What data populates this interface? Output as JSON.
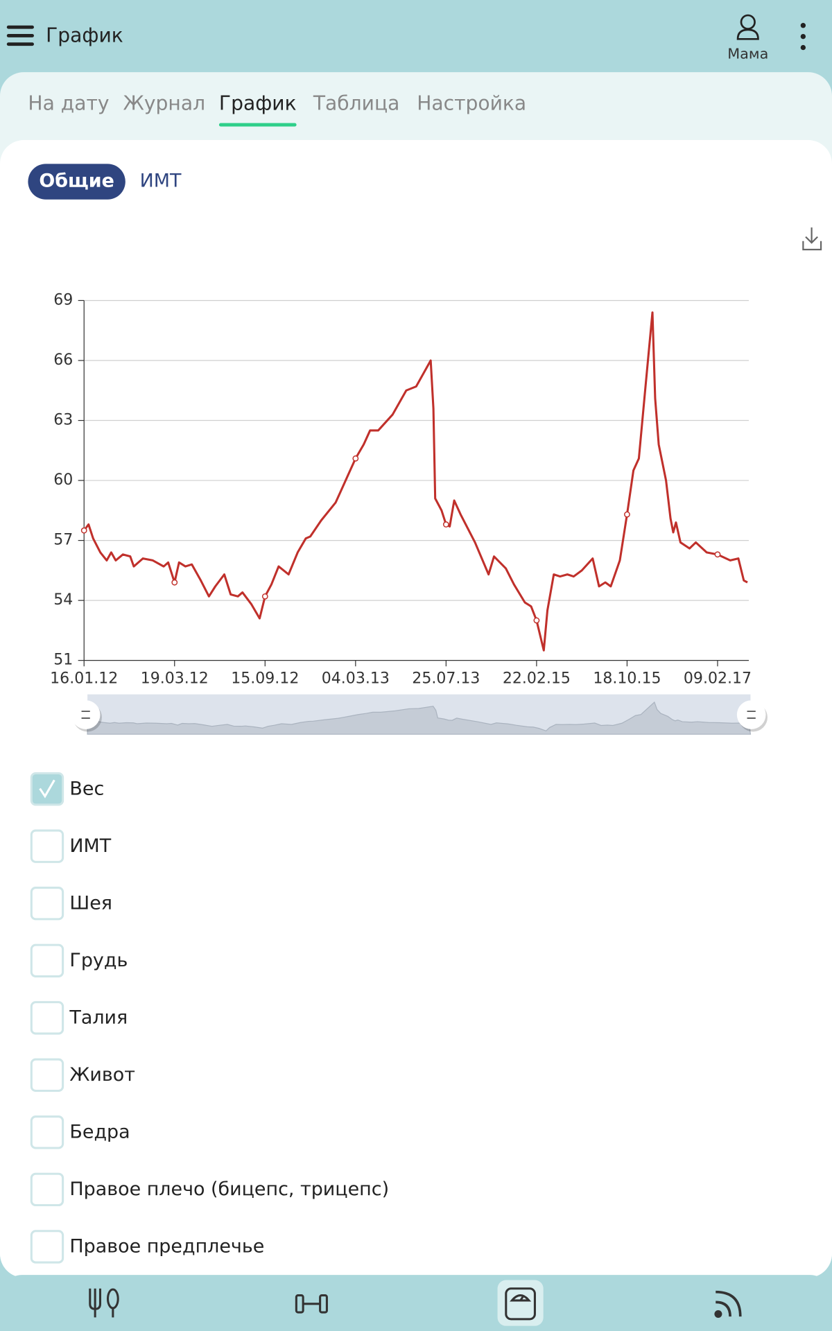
{
  "app_bar": {
    "title": "График",
    "profile": "Мама"
  },
  "tabs": [
    {
      "label": "На дату",
      "active": false
    },
    {
      "label": "Журнал",
      "active": false
    },
    {
      "label": "График",
      "active": true
    },
    {
      "label": "Таблица",
      "active": false
    },
    {
      "label": "Настройка",
      "active": false
    }
  ],
  "subtabs": [
    {
      "label": "Общие",
      "active": true
    },
    {
      "label": "ИМТ",
      "active": false
    }
  ],
  "chart_data": {
    "type": "line",
    "color": "#c0302b",
    "grid": true,
    "x": [
      0,
      0.05,
      0.1,
      0.18,
      0.25,
      0.3,
      0.35,
      0.43,
      0.51,
      0.55,
      0.65,
      0.76,
      0.88,
      0.93,
      1.0,
      1.05,
      1.12,
      1.19,
      1.29,
      1.38,
      1.45,
      1.55,
      1.62,
      1.7,
      1.75,
      1.85,
      1.94,
      2.0,
      2.07,
      2.15,
      2.26,
      2.36,
      2.45,
      2.5,
      2.62,
      2.78,
      2.84,
      2.92,
      3.0,
      3.09,
      3.16,
      3.25,
      3.41,
      3.56,
      3.67,
      3.83,
      3.86,
      3.88,
      3.95,
      4.0,
      4.04,
      4.09,
      4.16,
      4.32,
      4.47,
      4.53,
      4.66,
      4.75,
      4.87,
      4.94,
      5.0,
      5.08,
      5.12,
      5.19,
      5.26,
      5.34,
      5.41,
      5.5,
      5.62,
      5.69,
      5.76,
      5.82,
      5.92,
      6.0,
      6.07,
      6.13,
      6.2,
      6.28,
      6.31,
      6.35,
      6.43,
      6.48,
      6.51,
      6.54,
      6.59,
      6.69,
      6.76,
      6.88,
      7.0,
      7.14,
      7.23,
      7.29,
      7.33
    ],
    "values": [
      57.5,
      57.8,
      57.1,
      56.4,
      56.0,
      56.4,
      56.0,
      56.3,
      56.2,
      55.7,
      56.1,
      56.0,
      55.7,
      55.9,
      54.9,
      55.9,
      55.7,
      55.8,
      55.0,
      54.2,
      54.7,
      55.3,
      54.3,
      54.2,
      54.4,
      53.8,
      53.1,
      54.2,
      54.8,
      55.7,
      55.3,
      56.4,
      57.1,
      57.2,
      58.0,
      58.9,
      59.5,
      60.3,
      61.1,
      61.8,
      62.5,
      62.5,
      63.3,
      64.5,
      64.7,
      66.0,
      63.6,
      59.1,
      58.5,
      57.8,
      57.7,
      59.0,
      58.3,
      56.9,
      55.3,
      56.2,
      55.6,
      54.8,
      53.9,
      53.7,
      53.0,
      51.5,
      53.5,
      55.3,
      55.2,
      55.3,
      55.2,
      55.5,
      56.1,
      54.7,
      54.9,
      54.7,
      56.0,
      58.3,
      60.5,
      61.1,
      64.5,
      68.4,
      64.1,
      61.8,
      60.0,
      58.1,
      57.4,
      57.9,
      56.9,
      56.6,
      56.9,
      56.4,
      56.3,
      56.0,
      56.1,
      55.0,
      54.9
    ],
    "xlim": [
      0,
      7.345
    ],
    "xticks": [
      {
        "value": 0,
        "label": "16.01.12"
      },
      {
        "value": 1,
        "label": "19.03.12"
      },
      {
        "value": 2,
        "label": "15.09.12"
      },
      {
        "value": 3,
        "label": "04.03.13"
      },
      {
        "value": 4,
        "label": "25.07.13"
      },
      {
        "value": 5,
        "label": "22.02.15"
      },
      {
        "value": 6,
        "label": "18.10.15"
      },
      {
        "value": 7,
        "label": "09.02.17"
      }
    ],
    "ylim": [
      51,
      69
    ],
    "yticks": [
      51,
      54,
      57,
      60,
      63,
      66,
      69
    ]
  },
  "checkboxes": [
    {
      "label": "Вес",
      "checked": true
    },
    {
      "label": "ИМТ",
      "checked": false
    },
    {
      "label": "Шея",
      "checked": false
    },
    {
      "label": "Грудь",
      "checked": false
    },
    {
      "label": "Талия",
      "checked": false
    },
    {
      "label": "Живот",
      "checked": false
    },
    {
      "label": "Бедра",
      "checked": false
    },
    {
      "label": "Правое плечо (бицепс, трицепс)",
      "checked": false
    },
    {
      "label": "Правое предплечье",
      "checked": false
    }
  ]
}
